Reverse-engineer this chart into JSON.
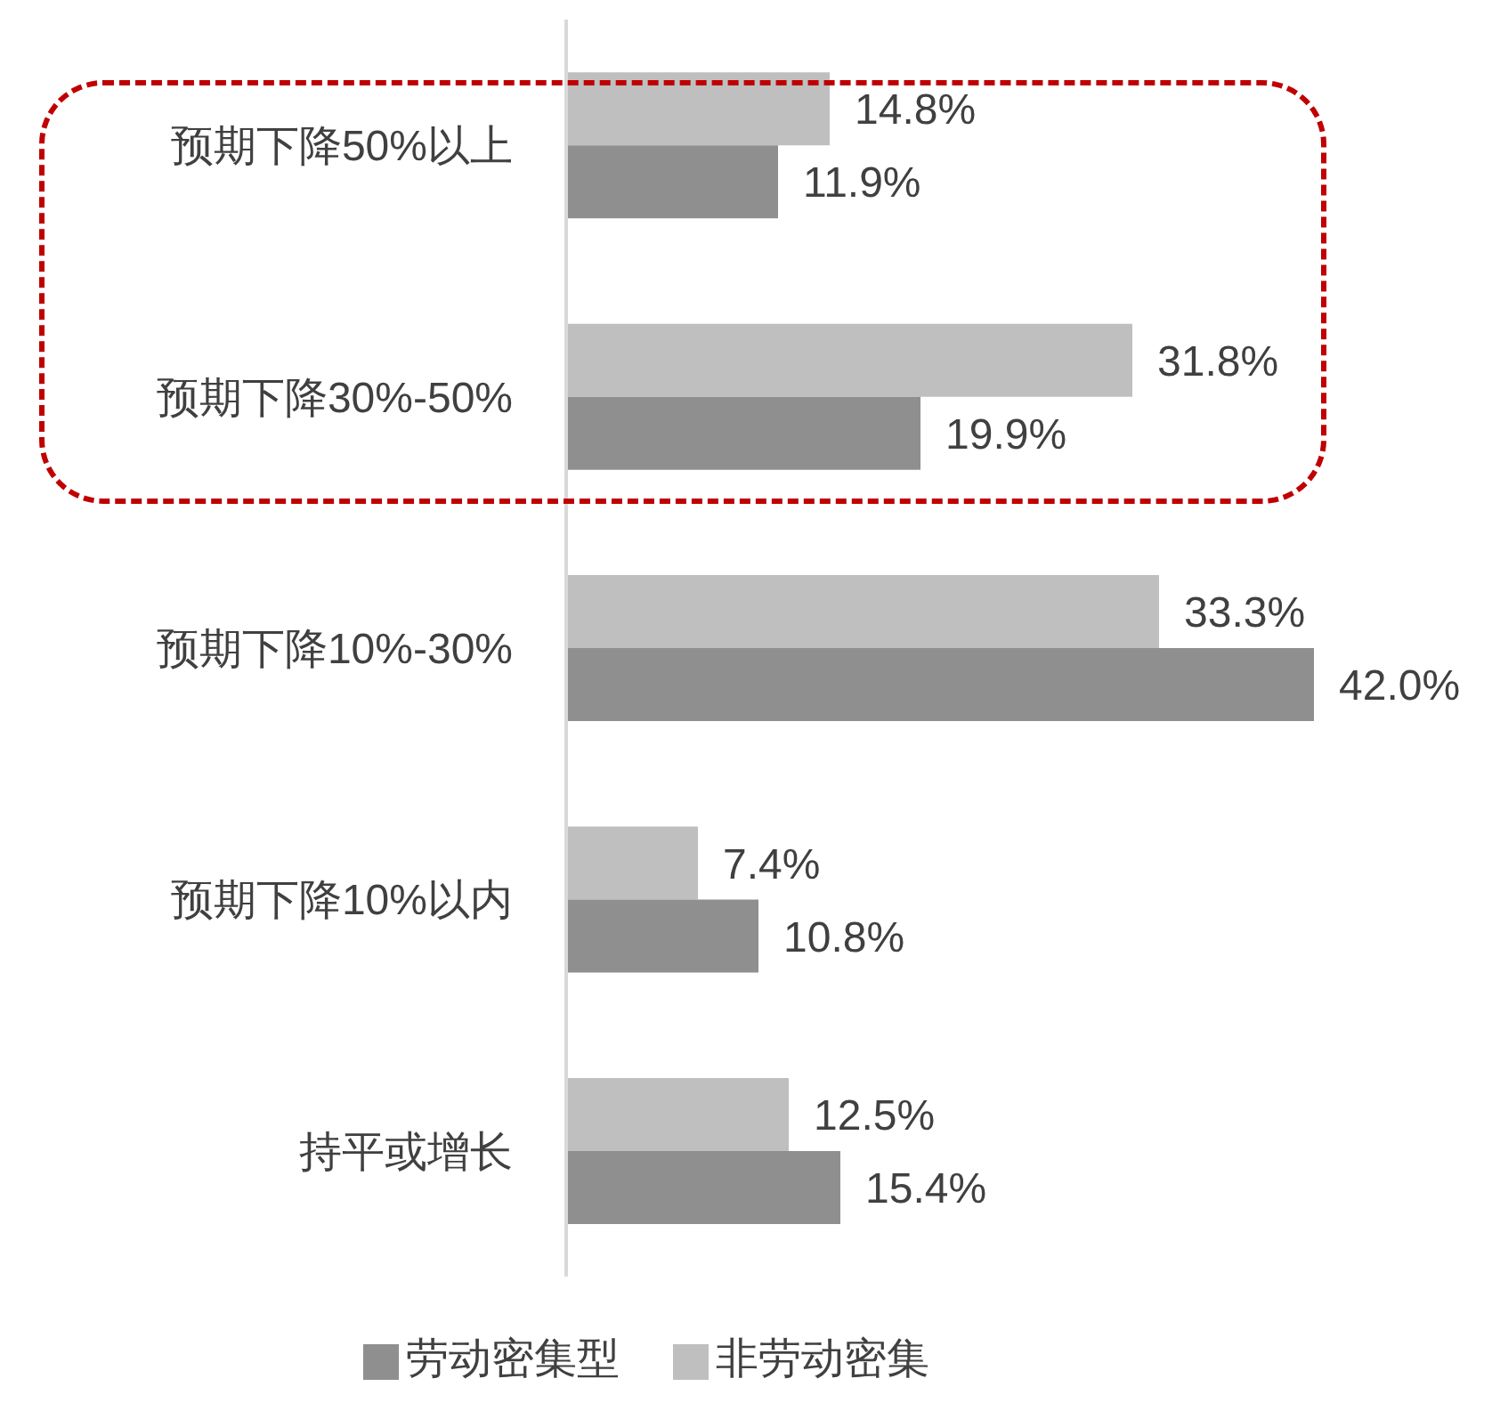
{
  "chart_data": {
    "type": "bar",
    "orientation": "horizontal",
    "categories": [
      "预期下降50%以上",
      "预期下降30%-50%",
      "预期下降10%-30%",
      "预期下降10%以内",
      "持平或增长"
    ],
    "series": [
      {
        "name": "非劳动密集",
        "color": "#bfbfbf",
        "values": [
          14.8,
          31.8,
          33.3,
          7.4,
          12.5
        ],
        "value_labels": [
          "14.8%",
          "31.8%",
          "33.3%",
          "7.4%",
          "12.5%"
        ]
      },
      {
        "name": "劳动密集型",
        "color": "#8f8f8f",
        "values": [
          11.9,
          19.9,
          42.0,
          10.8,
          15.4
        ],
        "value_labels": [
          "11.9%",
          "19.9%",
          "42.0%",
          "10.8%",
          "15.4%"
        ]
      }
    ],
    "legend": "bottom",
    "grid": false
  }
}
